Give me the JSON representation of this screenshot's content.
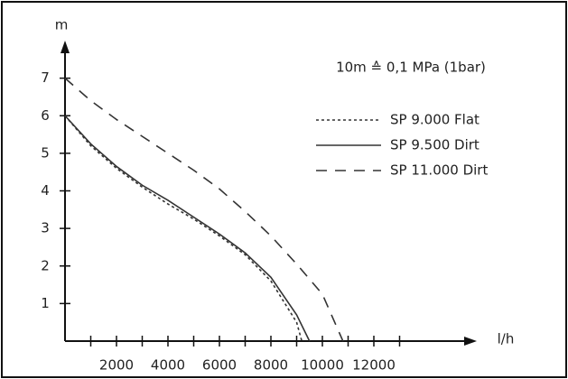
{
  "chart_data": {
    "type": "line",
    "annotation": "10m ≙ 0,1 MPa (1bar)",
    "x_label": "l/h",
    "y_label": "m",
    "xlim": [
      0,
      16000
    ],
    "ylim": [
      0,
      8
    ],
    "xticks": [
      2000,
      4000,
      6000,
      8000,
      10000,
      12000
    ],
    "xminor_ticks": [
      1000,
      3000,
      5000,
      7000,
      9000,
      11000,
      13000
    ],
    "yticks": [
      1,
      2,
      3,
      4,
      5,
      6,
      7
    ],
    "color": "#333333",
    "series": [
      {
        "name": "SP 9.000 Flat",
        "dash": "dotted",
        "x": [
          0,
          1000,
          2000,
          3000,
          4000,
          5000,
          6000,
          7000,
          8000,
          9000,
          9200
        ],
        "values": [
          6,
          5.2,
          4.6,
          4.1,
          3.65,
          3.25,
          2.8,
          2.3,
          1.6,
          0.5,
          0
        ]
      },
      {
        "name": "SP 9.500 Dirt",
        "dash": "solid",
        "x": [
          0,
          1000,
          2000,
          3000,
          4000,
          5000,
          6000,
          7000,
          8000,
          9000,
          9500
        ],
        "values": [
          6,
          5.25,
          4.65,
          4.15,
          3.75,
          3.3,
          2.85,
          2.35,
          1.7,
          0.7,
          0
        ]
      },
      {
        "name": "SP 11.000 Dirt",
        "dash": "dashed",
        "x": [
          0,
          1000,
          2000,
          3000,
          4000,
          5000,
          6000,
          7000,
          8000,
          9000,
          10000,
          10800
        ],
        "values": [
          7,
          6.4,
          5.9,
          5.45,
          5.0,
          4.55,
          4.05,
          3.45,
          2.8,
          2.05,
          1.25,
          0
        ]
      }
    ]
  }
}
